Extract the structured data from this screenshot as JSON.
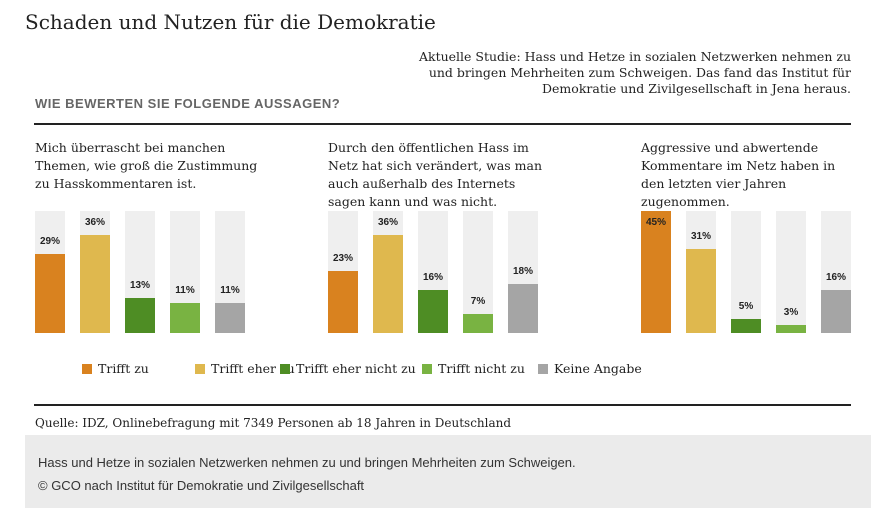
{
  "title": "Schaden und Nutzen für die Demokratie",
  "intro": "Aktuelle Studie: Hass und Hetze in sozialen Netzwerken nehmen zu und bringen Mehrheiten zum Schweigen. Das fand das Institut für Demokratie und Zivilgesellschaft in Jena heraus.",
  "question": "WIE BEWERTEN SIE FOLGENDE AUSSAGEN?",
  "source": "Quelle: IDZ, Onlinebefragung mit 7349 Personen ab 18 Jahren in Deutschland",
  "caption": {
    "line1": "Hass und Hetze in sozialen Netzwerken nehmen zu und bringen Mehrheiten zum Schweigen.",
    "line2": "© GCO nach Institut für Demokratie und Zivilgesellschaft"
  },
  "chart_data": [
    {
      "type": "bar",
      "title": "Mich überrascht bei manchen Themen, wie groß die Zustimmung zu Hasskommentaren ist.",
      "categories": [
        "Trifft zu",
        "Trifft eher zu",
        "Trifft eher nicht zu",
        "Trifft nicht zu",
        "Keine Angabe"
      ],
      "values": [
        29,
        36,
        13,
        11,
        11
      ],
      "labels": [
        "29%",
        "36%",
        "13%",
        "11%",
        "11%"
      ],
      "ylim": [
        0,
        45
      ]
    },
    {
      "type": "bar",
      "title": "Durch den öffentlichen Hass im Netz hat sich verändert, was man auch außerhalb des Internets sagen kann und was nicht.",
      "categories": [
        "Trifft zu",
        "Trifft eher zu",
        "Trifft eher nicht zu",
        "Trifft nicht zu",
        "Keine Angabe"
      ],
      "values": [
        23,
        36,
        16,
        7,
        18
      ],
      "labels": [
        "23%",
        "36%",
        "16%",
        "7%",
        "18%"
      ],
      "ylim": [
        0,
        45
      ]
    },
    {
      "type": "bar",
      "title": "Aggressive und abwertende Kommentare im Netz haben in den letzten vier Jahren zugenommen.",
      "categories": [
        "Trifft zu",
        "Trifft eher zu",
        "Trifft eher nicht zu",
        "Trifft nicht zu",
        "Keine Angabe"
      ],
      "values": [
        45,
        31,
        5,
        3,
        16
      ],
      "labels": [
        "45%",
        "31%",
        "5%",
        "3%",
        "16%"
      ],
      "ylim": [
        0,
        45
      ]
    }
  ],
  "legend": [
    {
      "label": "Trifft zu",
      "color": "#d9821f"
    },
    {
      "label": "Trifft eher zu",
      "color": "#dfb84e"
    },
    {
      "label": "Trifft eher nicht zu",
      "color": "#4e8d24"
    },
    {
      "label": "Trifft nicht zu",
      "color": "#79b342"
    },
    {
      "label": "Keine Angabe",
      "color": "#a5a5a5"
    }
  ]
}
